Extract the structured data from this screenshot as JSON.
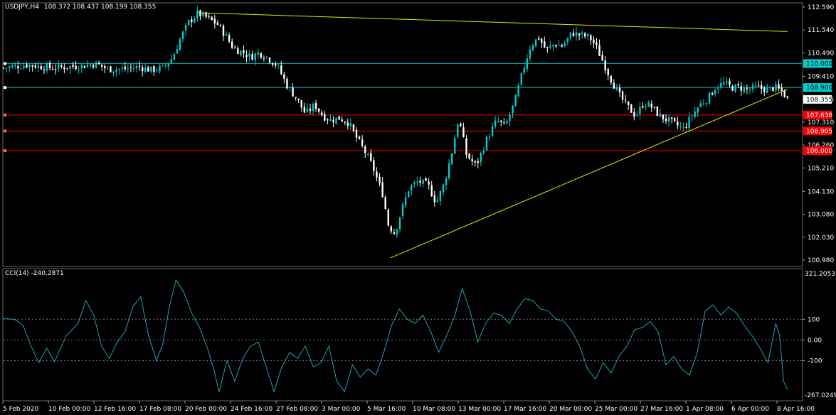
{
  "header": {
    "symbol_label": "USDJPY,H4",
    "ohlc": "108.372 108.437 108.199 108.355"
  },
  "indicator": {
    "label": "CCI(14) -240.2871",
    "scale_max": "321.2053",
    "scale_min": "-267.0249",
    "levels": [
      "100",
      "0.00",
      "-100"
    ]
  },
  "colors": {
    "background": "#000000",
    "bull": "#00cccc",
    "bear": "#ffffff",
    "cci_line": "#1fa3b3",
    "level_blue": "#00bfbf",
    "level_red": "#ff0000",
    "trend": "#e6e600",
    "grid": "#3a3a3a"
  },
  "chart_data": {
    "type": "candlestick",
    "price_axis": {
      "ticks": [
        "112.590",
        "111.540",
        "110.490",
        "109.410",
        "108.355",
        "107.310",
        "106.260",
        "105.210",
        "104.130",
        "103.080",
        "102.030",
        "100.980"
      ],
      "range": [
        100.98,
        112.59
      ],
      "current": "108.355"
    },
    "time_axis": {
      "labels": [
        "5 Feb 2020",
        "10 Feb 00:00",
        "12 Feb 16:00",
        "17 Feb 08:00",
        "20 Feb 00:00",
        "24 Feb 16:00",
        "27 Feb 08:00",
        "3 Mar 00:00",
        "5 Mar 16:00",
        "10 Mar 08:00",
        "13 Mar 00:00",
        "17 Mar 16:00",
        "20 Mar 08:00",
        "25 Mar 00:00",
        "27 Mar 16:00",
        "1 Apr 08:00",
        "6 Apr 00:00",
        "8 Apr 16:00"
      ]
    },
    "horizontal_levels": [
      {
        "value": 110.0,
        "label": "110.000",
        "color": "blue"
      },
      {
        "value": 108.9,
        "label": "108.900",
        "color": "blue"
      },
      {
        "value": 107.638,
        "label": "107.638",
        "color": "red"
      },
      {
        "value": 106.905,
        "label": "106.905",
        "color": "red"
      },
      {
        "value": 106.0,
        "label": "106.000",
        "color": "red"
      }
    ],
    "trendlines": [
      {
        "from": [
          0.2435,
          112.33
        ],
        "to": [
          0.982,
          111.47
        ]
      },
      {
        "from": [
          0.4845,
          101.08
        ],
        "to": [
          0.982,
          108.82
        ]
      }
    ],
    "close_path": [
      [
        0.0,
        109.8
      ],
      [
        0.03,
        109.95
      ],
      [
        0.06,
        109.8
      ],
      [
        0.08,
        109.85
      ],
      [
        0.1,
        109.9
      ],
      [
        0.115,
        110.0
      ],
      [
        0.13,
        109.75
      ],
      [
        0.15,
        109.75
      ],
      [
        0.17,
        109.85
      ],
      [
        0.185,
        109.7
      ],
      [
        0.2,
        109.8
      ],
      [
        0.212,
        110.3
      ],
      [
        0.222,
        111.2
      ],
      [
        0.232,
        111.9
      ],
      [
        0.243,
        112.3
      ],
      [
        0.255,
        112.1
      ],
      [
        0.268,
        111.8
      ],
      [
        0.278,
        111.3
      ],
      [
        0.288,
        110.7
      ],
      [
        0.3,
        110.5
      ],
      [
        0.31,
        110.3
      ],
      [
        0.32,
        110.5
      ],
      [
        0.33,
        110.3
      ],
      [
        0.343,
        109.9
      ],
      [
        0.355,
        109.0
      ],
      [
        0.367,
        108.4
      ],
      [
        0.378,
        107.7
      ],
      [
        0.39,
        108.1
      ],
      [
        0.4,
        107.6
      ],
      [
        0.41,
        107.4
      ],
      [
        0.42,
        107.5
      ],
      [
        0.432,
        107.3
      ],
      [
        0.442,
        106.6
      ],
      [
        0.452,
        106.0
      ],
      [
        0.462,
        105.3
      ],
      [
        0.475,
        104.0
      ],
      [
        0.482,
        102.6
      ],
      [
        0.49,
        102.2
      ],
      [
        0.498,
        103.2
      ],
      [
        0.508,
        104.3
      ],
      [
        0.52,
        104.6
      ],
      [
        0.532,
        104.4
      ],
      [
        0.542,
        103.6
      ],
      [
        0.552,
        104.5
      ],
      [
        0.562,
        106.0
      ],
      [
        0.57,
        107.5
      ],
      [
        0.58,
        105.8
      ],
      [
        0.592,
        105.3
      ],
      [
        0.605,
        106.5
      ],
      [
        0.618,
        107.4
      ],
      [
        0.628,
        107.1
      ],
      [
        0.64,
        108.2
      ],
      [
        0.65,
        109.6
      ],
      [
        0.66,
        110.8
      ],
      [
        0.67,
        111.2
      ],
      [
        0.68,
        110.6
      ],
      [
        0.69,
        110.9
      ],
      [
        0.7,
        110.8
      ],
      [
        0.712,
        111.4
      ],
      [
        0.724,
        111.3
      ],
      [
        0.734,
        111.2
      ],
      [
        0.742,
        110.8
      ],
      [
        0.752,
        110.0
      ],
      [
        0.762,
        109.2
      ],
      [
        0.772,
        108.5
      ],
      [
        0.782,
        108.0
      ],
      [
        0.792,
        107.6
      ],
      [
        0.802,
        108.2
      ],
      [
        0.812,
        108.0
      ],
      [
        0.822,
        107.6
      ],
      [
        0.832,
        107.4
      ],
      [
        0.842,
        107.2
      ],
      [
        0.852,
        107.0
      ],
      [
        0.862,
        107.6
      ],
      [
        0.872,
        108.1
      ],
      [
        0.882,
        108.4
      ],
      [
        0.892,
        108.9
      ],
      [
        0.902,
        109.1
      ],
      [
        0.912,
        108.9
      ],
      [
        0.922,
        108.9
      ],
      [
        0.932,
        108.8
      ],
      [
        0.944,
        108.9
      ],
      [
        0.956,
        108.8
      ],
      [
        0.966,
        108.9
      ],
      [
        0.976,
        108.7
      ],
      [
        0.982,
        108.36
      ]
    ],
    "cci_range": [
      -267.0249,
      321.2053
    ],
    "cci_path": [
      [
        0.0,
        105
      ],
      [
        0.015,
        98
      ],
      [
        0.025,
        70
      ],
      [
        0.035,
        -30
      ],
      [
        0.045,
        -110
      ],
      [
        0.055,
        -40
      ],
      [
        0.065,
        -105
      ],
      [
        0.08,
        20
      ],
      [
        0.095,
        80
      ],
      [
        0.105,
        190
      ],
      [
        0.115,
        120
      ],
      [
        0.125,
        -30
      ],
      [
        0.135,
        -90
      ],
      [
        0.145,
        -10
      ],
      [
        0.155,
        40
      ],
      [
        0.165,
        160
      ],
      [
        0.175,
        210
      ],
      [
        0.185,
        20
      ],
      [
        0.195,
        -100
      ],
      [
        0.203,
        -20
      ],
      [
        0.212,
        170
      ],
      [
        0.22,
        290
      ],
      [
        0.23,
        230
      ],
      [
        0.24,
        130
      ],
      [
        0.25,
        60
      ],
      [
        0.26,
        -40
      ],
      [
        0.268,
        -140
      ],
      [
        0.275,
        -250
      ],
      [
        0.285,
        -100
      ],
      [
        0.295,
        -200
      ],
      [
        0.305,
        -90
      ],
      [
        0.315,
        -30
      ],
      [
        0.325,
        -10
      ],
      [
        0.335,
        -130
      ],
      [
        0.345,
        -250
      ],
      [
        0.355,
        -130
      ],
      [
        0.365,
        -60
      ],
      [
        0.375,
        -90
      ],
      [
        0.385,
        -30
      ],
      [
        0.395,
        -130
      ],
      [
        0.405,
        -110
      ],
      [
        0.415,
        -30
      ],
      [
        0.425,
        -200
      ],
      [
        0.435,
        -250
      ],
      [
        0.445,
        -120
      ],
      [
        0.455,
        -180
      ],
      [
        0.465,
        -140
      ],
      [
        0.475,
        -170
      ],
      [
        0.485,
        -60
      ],
      [
        0.495,
        70
      ],
      [
        0.505,
        150
      ],
      [
        0.515,
        100
      ],
      [
        0.525,
        80
      ],
      [
        0.535,
        120
      ],
      [
        0.545,
        40
      ],
      [
        0.555,
        -60
      ],
      [
        0.565,
        20
      ],
      [
        0.575,
        110
      ],
      [
        0.585,
        250
      ],
      [
        0.595,
        140
      ],
      [
        0.605,
        -10
      ],
      [
        0.615,
        80
      ],
      [
        0.625,
        130
      ],
      [
        0.635,
        120
      ],
      [
        0.645,
        80
      ],
      [
        0.655,
        150
      ],
      [
        0.665,
        200
      ],
      [
        0.675,
        190
      ],
      [
        0.685,
        150
      ],
      [
        0.695,
        140
      ],
      [
        0.705,
        100
      ],
      [
        0.715,
        90
      ],
      [
        0.725,
        40
      ],
      [
        0.735,
        -30
      ],
      [
        0.745,
        -140
      ],
      [
        0.755,
        -190
      ],
      [
        0.765,
        -110
      ],
      [
        0.775,
        -160
      ],
      [
        0.785,
        -80
      ],
      [
        0.795,
        -30
      ],
      [
        0.805,
        50
      ],
      [
        0.815,
        60
      ],
      [
        0.825,
        90
      ],
      [
        0.835,
        40
      ],
      [
        0.845,
        -120
      ],
      [
        0.855,
        -80
      ],
      [
        0.865,
        -140
      ],
      [
        0.875,
        -170
      ],
      [
        0.885,
        -60
      ],
      [
        0.895,
        140
      ],
      [
        0.905,
        170
      ],
      [
        0.915,
        120
      ],
      [
        0.925,
        160
      ],
      [
        0.935,
        130
      ],
      [
        0.945,
        70
      ],
      [
        0.955,
        20
      ],
      [
        0.965,
        -40
      ],
      [
        0.975,
        -110
      ],
      [
        0.985,
        80
      ],
      [
        0.99,
        20
      ],
      [
        0.995,
        -200
      ],
      [
        1.0,
        -240
      ]
    ]
  }
}
